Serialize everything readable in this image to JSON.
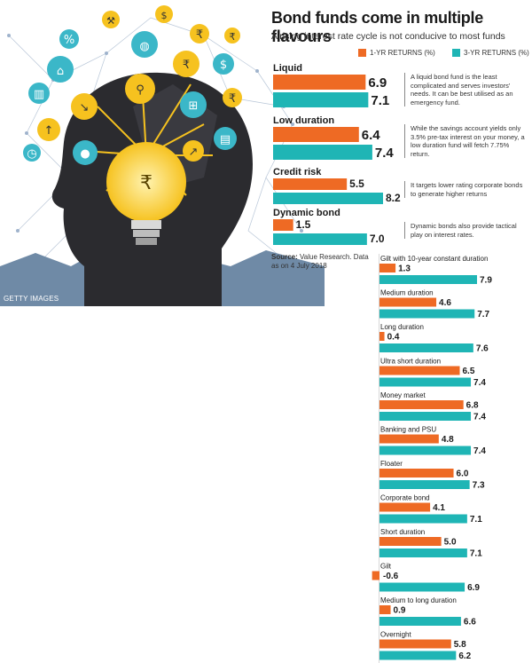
{
  "headline": "Bond funds come in multiple flavours",
  "subtitle": "A rising interest rate cycle is not conducive to most funds",
  "photo_credit": "GETTY IMAGES",
  "source_label": "Source:",
  "source_text": "Value Research. Data as on 4 July 2018",
  "colors": {
    "one_year": "#ee6a24",
    "three_year": "#1fb5b5",
    "illustration_bg": "#3b4f6b",
    "bulb": "#f6c21f"
  },
  "illustration_icons": [
    "percent-icon",
    "gavel-icon",
    "money-hands-icon",
    "rupee-icon",
    "rupee-icon",
    "bank-icon",
    "globe-icon",
    "rupee-icon",
    "money-bag-icon",
    "building-icon",
    "chart-down-icon",
    "search-icon",
    "cart-icon",
    "coin-icon",
    "piggy-bank-icon",
    "bulb-rupee-icon",
    "rising-chart-icon",
    "briefcase-icon",
    "clock-icon"
  ],
  "chart_data": {
    "type": "bar",
    "legend": [
      "1-YR RETURNS (%)",
      "3-YR RETURNS (%)"
    ],
    "featured": [
      {
        "category": "Liquid",
        "one_year": 6.9,
        "three_year": 7.1,
        "note": "A liquid bond fund is the least complicated and serves investors' needs. It can be best utilised as an emergency fund."
      },
      {
        "category": "Low duration",
        "one_year": 6.4,
        "three_year": 7.4,
        "note": "While the savings account yields only 3.5% pre-tax interest on your money, a low duration fund will fetch 7.75% return."
      },
      {
        "category": "Credit risk",
        "one_year": 5.5,
        "three_year": 8.2,
        "note": "It targets lower rating corporate bonds to generate higher returns"
      },
      {
        "category": "Dynamic bond",
        "one_year": 1.5,
        "three_year": 7.0,
        "note": "Dynamic bonds also provide tactical play on interest rates."
      }
    ],
    "others": [
      {
        "category": "Gilt with 10-year constant duration",
        "one_year": 1.3,
        "three_year": 7.9
      },
      {
        "category": "Medium duration",
        "one_year": 4.6,
        "three_year": 7.7
      },
      {
        "category": "Long duration",
        "one_year": 0.4,
        "three_year": 7.6
      },
      {
        "category": "Ultra short duration",
        "one_year": 6.5,
        "three_year": 7.4
      },
      {
        "category": "Money market",
        "one_year": 6.8,
        "three_year": 7.4
      },
      {
        "category": "Banking and PSU",
        "one_year": 4.8,
        "three_year": 7.4
      },
      {
        "category": "Floater",
        "one_year": 6.0,
        "three_year": 7.3
      },
      {
        "category": "Corporate bond",
        "one_year": 4.1,
        "three_year": 7.1
      },
      {
        "category": "Short duration",
        "one_year": 5.0,
        "three_year": 7.1
      },
      {
        "category": "Gilt",
        "one_year": -0.6,
        "three_year": 6.9
      },
      {
        "category": "Medium to long duration",
        "one_year": 0.9,
        "three_year": 6.6
      },
      {
        "category": "Overnight",
        "one_year": 5.8,
        "three_year": 6.2
      }
    ]
  }
}
